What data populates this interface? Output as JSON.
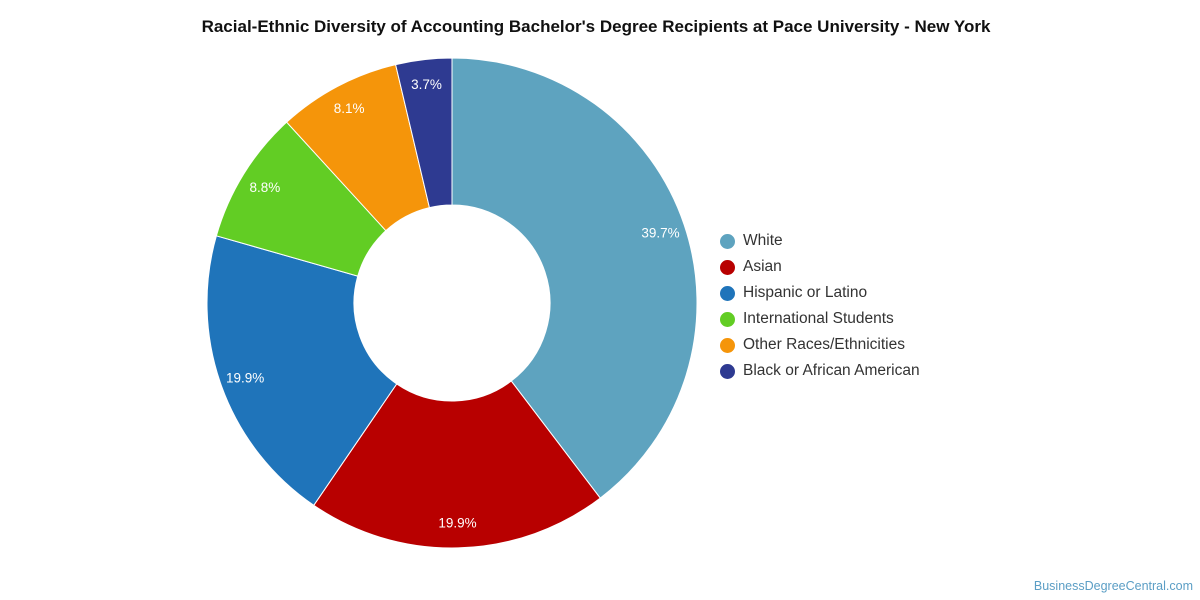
{
  "chart_data": {
    "type": "pie",
    "variant": "donut",
    "title": "Racial-Ethnic Diversity of Accounting Bachelor's Degree Recipients at Pace University - New York",
    "categories": [
      "White",
      "Asian",
      "Hispanic or Latino",
      "International Students",
      "Other Races/Ethnicities",
      "Black or African American"
    ],
    "values": [
      39.7,
      19.9,
      19.9,
      8.8,
      8.1,
      3.7
    ],
    "value_labels": [
      "39.7%",
      "19.9%",
      "19.9%",
      "8.8%",
      "8.1%",
      "3.7%"
    ],
    "colors": [
      "#5ea3bf",
      "#b80000",
      "#1f74ba",
      "#62cd24",
      "#f5950a",
      "#2e3a91"
    ],
    "legend_position": "right"
  },
  "footer": {
    "watermark": "BusinessDegreeCentral.com"
  }
}
